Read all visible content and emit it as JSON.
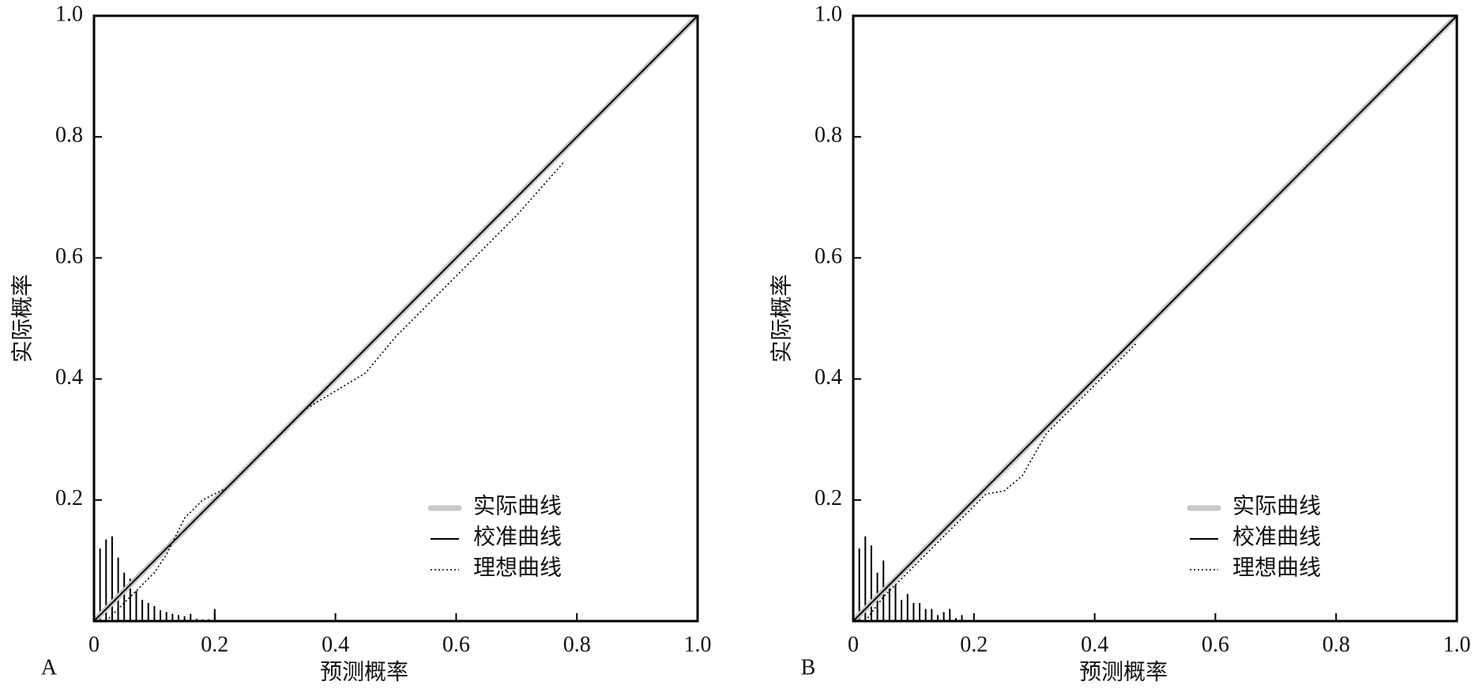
{
  "chart_data": [
    {
      "type": "line",
      "panel_label": "A",
      "xlabel": "预测概率",
      "ylabel": "实际概率",
      "xlim": [
        0,
        1
      ],
      "ylim": [
        0,
        1
      ],
      "xticks": [
        0,
        0.2,
        0.4,
        0.6,
        0.8,
        {
          "value": 1,
          "label": "1.0"
        }
      ],
      "yticks": [
        0.2,
        0.4,
        0.6,
        0.8,
        {
          "value": 1,
          "label": "1.0"
        }
      ],
      "legend": "lower right",
      "series": [
        {
          "name": "实际曲线",
          "color": "#c8c8c8",
          "style": "thick",
          "x": [
            0,
            1
          ],
          "values": [
            0,
            1
          ]
        },
        {
          "name": "校准曲线",
          "color": "#000000",
          "style": "solid",
          "x": [
            0,
            0.2,
            0.4,
            0.6,
            0.8,
            1
          ],
          "values": [
            0,
            0.2,
            0.4,
            0.6,
            0.8,
            1
          ]
        },
        {
          "name": "理想曲线",
          "color": "#000000",
          "style": "dotted",
          "x": [
            0.02,
            0.05,
            0.1,
            0.12,
            0.15,
            0.18,
            0.22,
            0.3,
            0.35,
            0.4,
            0.45,
            0.5,
            0.6,
            0.7,
            0.78
          ],
          "values": [
            0,
            0.03,
            0.08,
            0.11,
            0.17,
            0.2,
            0.22,
            0.3,
            0.35,
            0.38,
            0.41,
            0.47,
            0.57,
            0.67,
            0.76
          ]
        }
      ],
      "histogram": {
        "color": "#000000",
        "x": [
          0.01,
          0.02,
          0.03,
          0.04,
          0.05,
          0.06,
          0.07,
          0.08,
          0.09,
          0.1,
          0.11,
          0.12,
          0.13,
          0.14,
          0.15,
          0.16,
          0.17,
          0.18,
          0.19,
          0.2
        ],
        "values": [
          0.12,
          0.135,
          0.14,
          0.105,
          0.08,
          0.07,
          0.05,
          0.035,
          0.03,
          0.025,
          0.018,
          0.015,
          0.012,
          0.01,
          0.008,
          0.012,
          0.004,
          0.003,
          0.003,
          0.02
        ]
      }
    },
    {
      "type": "line",
      "panel_label": "B",
      "xlabel": "预测概率",
      "ylabel": "实际概率",
      "xlim": [
        0,
        1
      ],
      "ylim": [
        0,
        1
      ],
      "xticks": [
        0,
        0.2,
        0.4,
        0.6,
        0.8,
        {
          "value": 1,
          "label": "1.0"
        }
      ],
      "yticks": [
        0.2,
        0.4,
        0.6,
        0.8,
        {
          "value": 1,
          "label": "1.0"
        }
      ],
      "legend": "lower right",
      "series": [
        {
          "name": "实际曲线",
          "color": "#c8c8c8",
          "style": "thick",
          "x": [
            0,
            1
          ],
          "values": [
            0,
            1
          ]
        },
        {
          "name": "校准曲线",
          "color": "#000000",
          "style": "solid",
          "x": [
            0,
            0.2,
            0.4,
            0.6,
            0.8,
            1
          ],
          "values": [
            0,
            0.2,
            0.4,
            0.6,
            0.8,
            1
          ]
        },
        {
          "name": "理想曲线",
          "color": "#000000",
          "style": "dotted",
          "x": [
            0.02,
            0.05,
            0.1,
            0.15,
            0.2,
            0.22,
            0.25,
            0.28,
            0.32,
            0.38,
            0.43,
            0.47
          ],
          "values": [
            0,
            0.04,
            0.09,
            0.14,
            0.19,
            0.21,
            0.215,
            0.24,
            0.31,
            0.37,
            0.42,
            0.46
          ]
        }
      ],
      "histogram": {
        "color": "#000000",
        "x": [
          0.01,
          0.02,
          0.03,
          0.04,
          0.05,
          0.06,
          0.07,
          0.08,
          0.09,
          0.1,
          0.11,
          0.12,
          0.13,
          0.14,
          0.15,
          0.16,
          0.17,
          0.18
        ],
        "values": [
          0.12,
          0.14,
          0.125,
          0.08,
          0.1,
          0.06,
          0.06,
          0.035,
          0.045,
          0.03,
          0.03,
          0.02,
          0.02,
          0.01,
          0.015,
          0.02,
          0.005,
          0.01
        ]
      }
    }
  ]
}
